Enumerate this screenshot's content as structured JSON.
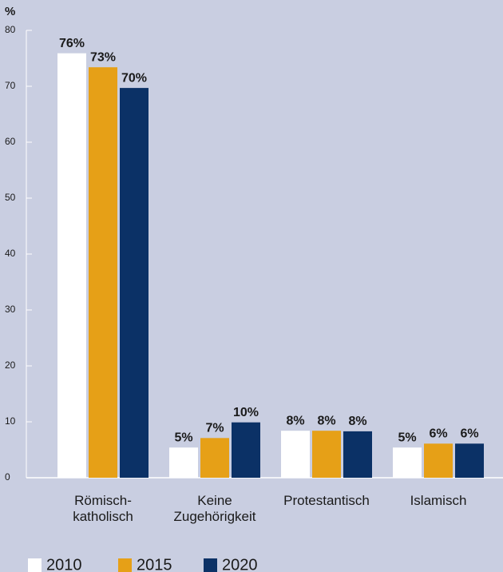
{
  "chart_data": {
    "type": "bar",
    "y_label": "%",
    "categories": [
      "Römisch-\nkatholisch",
      "Keine\nZugehörigkeit",
      "Protestantisch",
      "Islamisch"
    ],
    "series": [
      {
        "name": "2010",
        "color": "#ffffff",
        "values": [
          75.9,
          5.4,
          8.4,
          5.4
        ],
        "value_labels": [
          "76%",
          "5%",
          "8%",
          "5%"
        ]
      },
      {
        "name": "2015",
        "color": "#e6a017",
        "values": [
          73.4,
          7.1,
          8.4,
          6.1
        ],
        "value_labels": [
          "73%",
          "7%",
          "8%",
          "6%"
        ]
      },
      {
        "name": "2020",
        "color": "#0b3166",
        "values": [
          69.7,
          9.9,
          8.3,
          6.1
        ],
        "value_labels": [
          "70%",
          "10%",
          "8%",
          "6%"
        ]
      }
    ],
    "ylim": [
      0,
      80
    ],
    "yticks": [
      0,
      10,
      20,
      30,
      40,
      50,
      60,
      70,
      80
    ],
    "legend": "bottom-left"
  }
}
